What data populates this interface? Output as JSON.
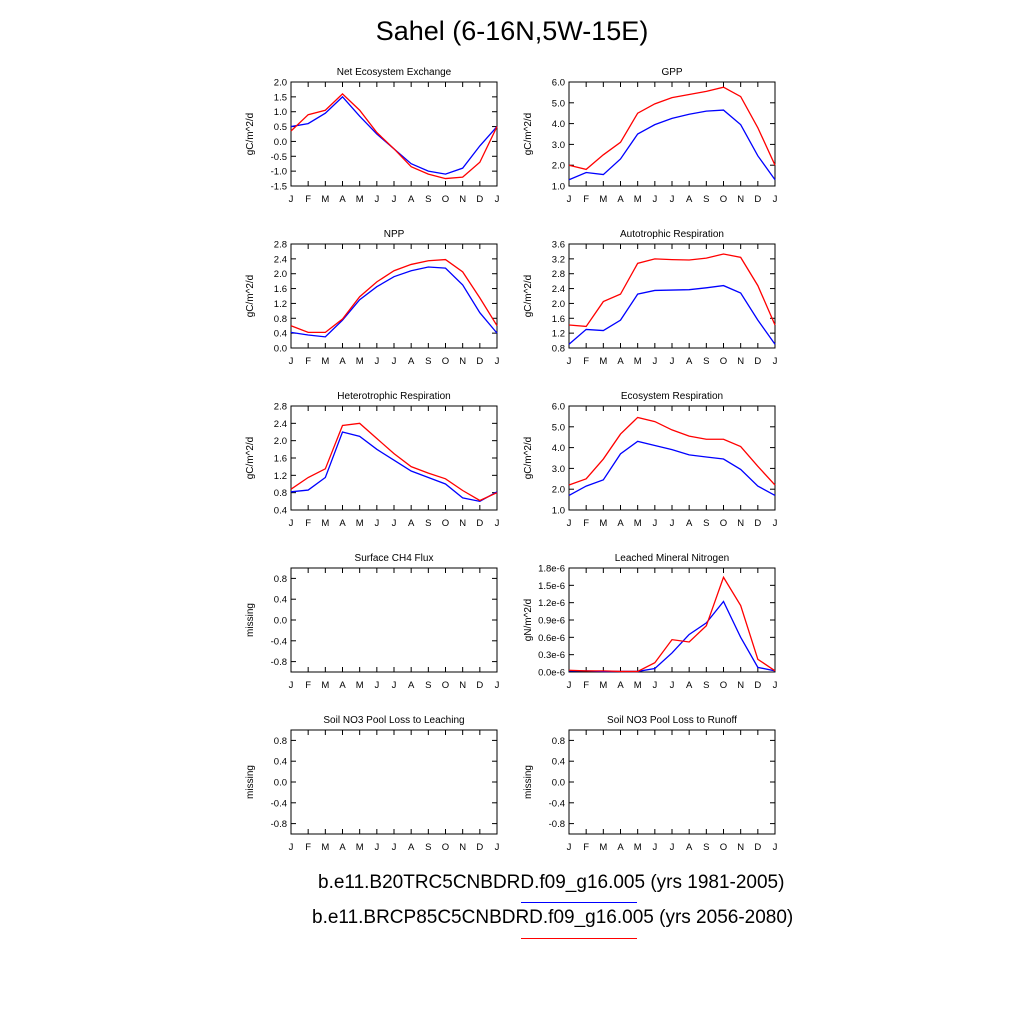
{
  "title": "Sahel (6-16N,5W-15E)",
  "month_ticks": [
    "J",
    "F",
    "M",
    "A",
    "M",
    "J",
    "J",
    "A",
    "S",
    "O",
    "N",
    "D",
    "J"
  ],
  "colors": {
    "case1": "#0000ff",
    "case2": "#ff0000"
  },
  "legend": [
    {
      "label": "b.e11.B20TRC5CNBDRD.f09_g16.005 (yrs 1981-2005)",
      "color": "#0000ff"
    },
    {
      "label": "b.e11.BRCP85C5CNBDRD.f09_g16.005 (yrs 2056-2080)",
      "color": "#ff0000"
    }
  ],
  "chart_data": [
    {
      "type": "line",
      "title": "Net Ecosystem Exchange",
      "ylabel": "gC/m^2/d",
      "ylim": [
        -1.5,
        2.0
      ],
      "yticks": [
        -1.5,
        -1.0,
        -0.5,
        0.0,
        0.5,
        1.0,
        1.5,
        2.0
      ],
      "ytick_labels": [
        "-1.5",
        "-1.0",
        "-0.5",
        "0.0",
        "0.5",
        "1.0",
        "1.5",
        "2.0"
      ],
      "series": [
        {
          "values": [
            0.5,
            0.6,
            0.95,
            1.5,
            0.85,
            0.25,
            -0.25,
            -0.75,
            -1.0,
            -1.1,
            -0.9,
            -0.15,
            0.5
          ]
        },
        {
          "values": [
            0.35,
            0.9,
            1.05,
            1.6,
            1.05,
            0.3,
            -0.25,
            -0.85,
            -1.1,
            -1.25,
            -1.2,
            -0.7,
            0.5
          ]
        }
      ]
    },
    {
      "type": "line",
      "title": "GPP",
      "ylabel": "gC/m^2/d",
      "ylim": [
        1.0,
        6.0
      ],
      "yticks": [
        1.0,
        2.0,
        3.0,
        4.0,
        5.0,
        6.0
      ],
      "ytick_labels": [
        "1.0",
        "2.0",
        "3.0",
        "4.0",
        "5.0",
        "6.0"
      ],
      "series": [
        {
          "values": [
            1.3,
            1.65,
            1.55,
            2.3,
            3.5,
            3.95,
            4.25,
            4.45,
            4.6,
            4.65,
            3.95,
            2.45,
            1.3
          ]
        },
        {
          "values": [
            2.0,
            1.8,
            2.5,
            3.1,
            4.5,
            4.95,
            5.25,
            5.4,
            5.55,
            5.75,
            5.3,
            3.8,
            2.0
          ]
        }
      ]
    },
    {
      "type": "line",
      "title": "NPP",
      "ylabel": "gC/m^2/d",
      "ylim": [
        0.0,
        2.8
      ],
      "yticks": [
        0.0,
        0.4,
        0.8,
        1.2,
        1.6,
        2.0,
        2.4,
        2.8
      ],
      "ytick_labels": [
        "0.0",
        "0.4",
        "0.8",
        "1.2",
        "1.6",
        "2.0",
        "2.4",
        "2.8"
      ],
      "series": [
        {
          "values": [
            0.42,
            0.35,
            0.3,
            0.75,
            1.3,
            1.65,
            1.92,
            2.08,
            2.18,
            2.15,
            1.7,
            0.95,
            0.4
          ]
        },
        {
          "values": [
            0.6,
            0.42,
            0.42,
            0.78,
            1.38,
            1.78,
            2.08,
            2.25,
            2.35,
            2.38,
            2.05,
            1.35,
            0.6
          ]
        }
      ]
    },
    {
      "type": "line",
      "title": "Autotrophic Respiration",
      "ylabel": "gC/m^2/d",
      "ylim": [
        0.8,
        3.6
      ],
      "yticks": [
        0.8,
        1.2,
        1.6,
        2.0,
        2.4,
        2.8,
        3.2,
        3.6
      ],
      "ytick_labels": [
        "0.8",
        "1.2",
        "1.6",
        "2.0",
        "2.4",
        "2.8",
        "3.2",
        "3.6"
      ],
      "series": [
        {
          "values": [
            0.9,
            1.3,
            1.27,
            1.55,
            2.25,
            2.35,
            2.36,
            2.37,
            2.42,
            2.48,
            2.28,
            1.55,
            0.9
          ]
        },
        {
          "values": [
            1.42,
            1.38,
            2.05,
            2.25,
            3.08,
            3.2,
            3.18,
            3.17,
            3.22,
            3.33,
            3.24,
            2.48,
            1.42
          ]
        }
      ]
    },
    {
      "type": "line",
      "title": "Heterotrophic Respiration",
      "ylabel": "gC/m^2/d",
      "ylim": [
        0.4,
        2.8
      ],
      "yticks": [
        0.4,
        0.8,
        1.2,
        1.6,
        2.0,
        2.4,
        2.8
      ],
      "ytick_labels": [
        "0.4",
        "0.8",
        "1.2",
        "1.6",
        "2.0",
        "2.4",
        "2.8"
      ],
      "series": [
        {
          "values": [
            0.82,
            0.86,
            1.15,
            2.2,
            2.1,
            1.8,
            1.55,
            1.3,
            1.15,
            1.0,
            0.68,
            0.6,
            0.82
          ]
        },
        {
          "values": [
            0.88,
            1.15,
            1.35,
            2.35,
            2.4,
            2.05,
            1.7,
            1.4,
            1.25,
            1.12,
            0.85,
            0.62,
            0.8
          ]
        }
      ]
    },
    {
      "type": "line",
      "title": "Ecosystem Respiration",
      "ylabel": "gC/m^2/d",
      "ylim": [
        1.0,
        6.0
      ],
      "yticks": [
        1.0,
        2.0,
        3.0,
        4.0,
        5.0,
        6.0
      ],
      "ytick_labels": [
        "1.0",
        "2.0",
        "3.0",
        "4.0",
        "5.0",
        "6.0"
      ],
      "series": [
        {
          "values": [
            1.7,
            2.15,
            2.45,
            3.7,
            4.3,
            4.1,
            3.9,
            3.65,
            3.55,
            3.45,
            2.95,
            2.15,
            1.7
          ]
        },
        {
          "values": [
            2.2,
            2.5,
            3.45,
            4.65,
            5.45,
            5.25,
            4.85,
            4.55,
            4.4,
            4.4,
            4.05,
            3.1,
            2.2
          ]
        }
      ]
    },
    {
      "type": "line",
      "title": "Surface CH4 Flux",
      "ylabel": "missing",
      "ylim": [
        -1.0,
        1.0
      ],
      "yticks": [
        -0.8,
        -0.4,
        0.0,
        0.4,
        0.8
      ],
      "ytick_labels": [
        "-0.8",
        "-0.4",
        "0.0",
        "0.4",
        "0.8"
      ],
      "series": []
    },
    {
      "type": "line",
      "title": "Leached Mineral Nitrogen",
      "ylabel": "gN/m^2/d",
      "ylim": [
        0.0,
        1.8e-06
      ],
      "yticks": [
        0.0,
        3e-07,
        6e-07,
        9e-07,
        1.2e-06,
        1.5e-06,
        1.8e-06
      ],
      "ytick_labels": [
        "0.0e-6",
        "0.3e-6",
        "0.6e-6",
        "0.9e-6",
        "1.2e-6",
        "1.5e-6",
        "1.8e-6"
      ],
      "series": [
        {
          "values": [
            2e-08,
            2e-08,
            1e-08,
            1e-08,
            1e-08,
            6e-08,
            3.3e-07,
            6.5e-07,
            8.5e-07,
            1.22e-06,
            6e-07,
            8e-08,
            2e-08
          ]
        },
        {
          "values": [
            3e-08,
            2e-08,
            2e-08,
            1e-08,
            1e-08,
            1.6e-07,
            5.6e-07,
            5.2e-07,
            8e-07,
            1.64e-06,
            1.15e-06,
            2.2e-07,
            2e-08
          ]
        }
      ]
    },
    {
      "type": "line",
      "title": "Soil NO3 Pool Loss to Leaching",
      "ylabel": "missing",
      "ylim": [
        -1.0,
        1.0
      ],
      "yticks": [
        -0.8,
        -0.4,
        0.0,
        0.4,
        0.8
      ],
      "ytick_labels": [
        "-0.8",
        "-0.4",
        "0.0",
        "0.4",
        "0.8"
      ],
      "series": []
    },
    {
      "type": "line",
      "title": "Soil NO3 Pool Loss to Runoff",
      "ylabel": "missing",
      "ylim": [
        -1.0,
        1.0
      ],
      "yticks": [
        -0.8,
        -0.4,
        0.0,
        0.4,
        0.8
      ],
      "ytick_labels": [
        "-0.8",
        "-0.4",
        "0.0",
        "0.4",
        "0.8"
      ],
      "series": []
    }
  ]
}
